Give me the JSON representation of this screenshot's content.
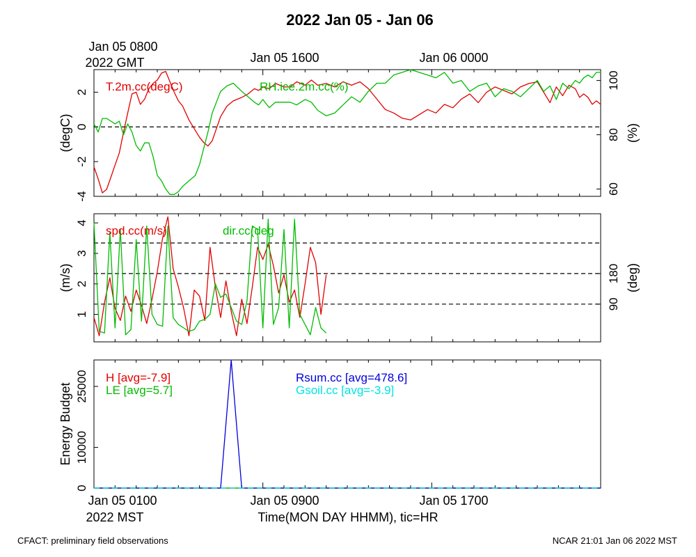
{
  "title": "2022 Jan 05 - Jan 06",
  "top_axis": {
    "labels": [
      "Jan 05 0800",
      "Jan 05 1600",
      "Jan 06 0000"
    ],
    "unit_line": "2022 GMT"
  },
  "bottom_axis": {
    "labels": [
      "Jan 05 0100",
      "Jan 05 0900",
      "Jan 05 1700"
    ],
    "unit_line": "2022 MST",
    "xlabel": "Time(MON DAY HHMM), tic=HR"
  },
  "footer": {
    "left": "CFACT: preliminary field observations",
    "right": "NCAR 21:01 Jan 06 2022 MST"
  },
  "colors": {
    "red": "#e00000",
    "green": "#00bb00",
    "blue": "#0000dd",
    "cyan": "#00e5e5",
    "dash": "#000000"
  },
  "chart_data": [
    {
      "type": "line",
      "x_unit": "hours since Jan 05 0100 MST",
      "xlim": [
        0,
        24
      ],
      "ylabel": "(degC)",
      "ylim": [
        -4,
        3.3
      ],
      "yticks": [
        -4,
        -2,
        0,
        2
      ],
      "ylabel_right": "(%)",
      "ylim_right": [
        57.3,
        104
      ],
      "yticks_right": [
        60,
        80,
        100
      ],
      "dashed_y": [
        0
      ],
      "series": [
        {
          "name": "T.2m.cc(degC)",
          "axis": "left",
          "color": "#e00000",
          "x": [
            0,
            0.2,
            0.4,
            0.6,
            0.8,
            1.0,
            1.2,
            1.4,
            1.6,
            1.8,
            2.0,
            2.2,
            2.4,
            2.6,
            2.8,
            3.0,
            3.2,
            3.4,
            3.6,
            3.8,
            4.0,
            4.2,
            4.5,
            4.8,
            5.0,
            5.2,
            5.4,
            5.6,
            5.8,
            6.0,
            6.3,
            6.6,
            7.0,
            7.3,
            7.6,
            7.8,
            8.0,
            8.3,
            8.6,
            9.0,
            9.3,
            9.6,
            10.0,
            10.3,
            10.6,
            11.0,
            11.4,
            11.8,
            12.2,
            12.6,
            13.0,
            13.4,
            13.8,
            14.2,
            14.6,
            15.0,
            15.4,
            15.8,
            16.2,
            16.6,
            17.0,
            17.4,
            17.8,
            18.2,
            18.6,
            19.0,
            19.4,
            19.8,
            20.2,
            20.6,
            21.0,
            21.3,
            21.6,
            21.9,
            22.2,
            22.5,
            22.8,
            23.0,
            23.2,
            23.4,
            23.6,
            23.8,
            24.0
          ],
          "y": [
            -2.3,
            -3.0,
            -3.8,
            -3.6,
            -2.9,
            -2.2,
            -1.5,
            -0.3,
            0.8,
            1.9,
            2.0,
            1.3,
            1.6,
            2.2,
            2.5,
            2.7,
            3.1,
            3.2,
            2.6,
            2.0,
            1.5,
            1.2,
            0.4,
            -0.2,
            -0.6,
            -0.9,
            -1.1,
            -0.8,
            -0.1,
            0.6,
            1.2,
            1.5,
            1.7,
            1.9,
            2.2,
            2.1,
            2.3,
            2.2,
            2.5,
            2.3,
            2.3,
            2.6,
            2.4,
            2.7,
            2.4,
            2.5,
            2.3,
            2.6,
            2.4,
            2.6,
            2.2,
            1.6,
            1.0,
            0.8,
            0.5,
            0.4,
            0.7,
            1.0,
            0.8,
            1.3,
            1.1,
            1.6,
            1.9,
            1.4,
            2.0,
            2.3,
            2.1,
            1.9,
            2.3,
            2.5,
            2.6,
            2.0,
            1.4,
            2.3,
            1.8,
            2.4,
            2.2,
            1.7,
            1.9,
            1.7,
            1.3,
            1.5,
            1.3
          ]
        },
        {
          "name": "RH.ice.2m.cc(%)",
          "axis": "right",
          "color": "#00bb00",
          "x": [
            0,
            0.2,
            0.4,
            0.6,
            0.8,
            1.0,
            1.2,
            1.4,
            1.6,
            1.8,
            2.0,
            2.2,
            2.4,
            2.6,
            2.8,
            3.0,
            3.2,
            3.4,
            3.6,
            3.8,
            4.0,
            4.2,
            4.5,
            4.8,
            5.0,
            5.2,
            5.4,
            5.6,
            5.8,
            6.0,
            6.3,
            6.6,
            7.0,
            7.3,
            7.6,
            7.8,
            8.0,
            8.3,
            8.6,
            9.0,
            9.3,
            9.6,
            10.0,
            10.3,
            10.6,
            11.0,
            11.4,
            11.8,
            12.2,
            12.6,
            13.0,
            13.4,
            13.8,
            14.2,
            14.6,
            15.0,
            15.4,
            15.8,
            16.2,
            16.6,
            17.0,
            17.4,
            17.8,
            18.2,
            18.6,
            19.0,
            19.4,
            19.8,
            20.2,
            20.6,
            21.0,
            21.3,
            21.6,
            21.9,
            22.2,
            22.5,
            22.8,
            23.0,
            23.2,
            23.4,
            23.6,
            23.8,
            24.0
          ],
          "y": [
            84,
            81,
            86,
            86,
            85,
            84,
            85,
            80,
            84,
            81,
            76,
            74,
            77,
            77,
            72,
            65,
            63,
            60,
            58,
            58,
            59,
            61,
            63,
            65,
            69,
            75,
            81,
            88,
            92,
            96,
            98,
            99,
            96,
            94,
            92,
            91,
            93,
            90,
            92,
            92,
            92,
            91,
            93,
            92,
            89,
            87,
            88,
            91,
            94,
            92,
            96,
            99,
            99,
            102,
            103,
            104,
            103,
            102,
            101,
            103,
            99,
            100,
            96,
            98,
            99,
            94,
            97,
            96,
            94,
            97,
            100,
            96,
            98,
            93,
            99,
            97,
            100,
            99,
            101,
            102,
            101,
            103,
            103
          ]
        }
      ]
    },
    {
      "type": "line",
      "x_unit": "hours since Jan 05 0100 MST",
      "xlim": [
        0,
        24
      ],
      "ylabel": "(m/s)",
      "ylim": [
        0.1,
        4.3
      ],
      "yticks": [
        1,
        2,
        3,
        4
      ],
      "ylabel_right": "(deg)",
      "ylim_right": [
        -21,
        356
      ],
      "yticks_right": [
        90,
        180
      ],
      "dashed_y_right": [
        90,
        180,
        270
      ],
      "series": [
        {
          "name": "spd.cc(m/s)",
          "axis": "left",
          "color": "#e00000",
          "x": [
            0,
            0.25,
            0.5,
            0.75,
            1.0,
            1.25,
            1.5,
            1.75,
            2.0,
            2.25,
            2.5,
            2.75,
            3.0,
            3.25,
            3.5,
            3.75,
            4.0,
            4.25,
            4.5,
            4.75,
            5.0,
            5.25,
            5.5,
            5.75,
            6.0,
            6.25,
            6.5,
            6.75,
            7.0,
            7.25,
            7.5,
            7.75,
            8.0,
            8.25,
            8.5,
            8.75,
            9.0,
            9.25,
            9.5,
            9.75,
            10.0,
            10.25,
            10.5,
            10.75,
            11.0
          ],
          "y": [
            0.9,
            0.3,
            1.4,
            2.2,
            1.2,
            0.8,
            1.6,
            1.1,
            1.8,
            1.3,
            0.7,
            1.5,
            2.4,
            3.5,
            4.2,
            2.5,
            1.9,
            1.2,
            0.3,
            1.8,
            1.6,
            0.8,
            3.2,
            1.9,
            0.9,
            2.1,
            1.1,
            0.3,
            1.5,
            0.7,
            1.9,
            3.2,
            2.8,
            3.3,
            2.6,
            1.7,
            2.3,
            1.4,
            1.8,
            0.9,
            2.0,
            3.2,
            2.7,
            1.0,
            2.3
          ]
        },
        {
          "name": "dir.cc(deg",
          "axis": "right",
          "color": "#00bb00",
          "x": [
            0,
            0.25,
            0.5,
            0.75,
            1.0,
            1.25,
            1.5,
            1.75,
            2.0,
            2.25,
            2.5,
            2.75,
            3.0,
            3.25,
            3.5,
            3.75,
            4.0,
            4.25,
            4.5,
            4.75,
            5.0,
            5.25,
            5.5,
            5.75,
            6.0,
            6.25,
            6.5,
            6.75,
            7.0,
            7.25,
            7.5,
            7.75,
            8.0,
            8.25,
            8.5,
            8.75,
            9.0,
            9.25,
            9.5,
            9.75,
            10.0,
            10.25,
            10.5,
            10.75,
            11.0
          ],
          "y": [
            330,
            10,
            5,
            300,
            20,
            310,
            0,
            15,
            280,
            40,
            320,
            60,
            30,
            25,
            320,
            50,
            30,
            20,
            10,
            15,
            40,
            45,
            60,
            150,
            110,
            120,
            80,
            40,
            30,
            100,
            320,
            310,
            20,
            340,
            30,
            80,
            310,
            20,
            340,
            60,
            30,
            0,
            80,
            20,
            5
          ]
        }
      ]
    },
    {
      "type": "line",
      "x_unit": "hours since Jan 05 0100 MST",
      "xlim": [
        0,
        24
      ],
      "ylabel": "Energy Budget",
      "ylim": [
        0,
        31500
      ],
      "yticks": [
        0,
        10000,
        25000
      ],
      "series": [
        {
          "name": "H [avg=-7.9]",
          "color": "#e00000",
          "x": [
            0,
            24
          ],
          "y": [
            0,
            0
          ]
        },
        {
          "name": "LE [avg=5.7]",
          "color": "#00bb00",
          "x": [
            0,
            24
          ],
          "y": [
            0,
            0
          ]
        },
        {
          "name": "Rsum.cc [avg=478.6]",
          "color": "#0000dd",
          "x": [
            0,
            6.0,
            6.5,
            7.0,
            24
          ],
          "y": [
            0,
            0,
            31500,
            0,
            0
          ]
        },
        {
          "name": "Gsoil.cc [avg=-3.9]",
          "color": "#00e5e5",
          "dashed": true,
          "x": [
            0,
            24
          ],
          "y": [
            0,
            0
          ]
        }
      ]
    }
  ]
}
